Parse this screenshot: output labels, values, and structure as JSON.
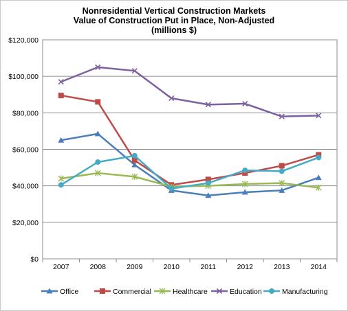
{
  "chart_data": {
    "type": "line",
    "title": "Nonresidential Vertical Construction Markets",
    "subtitle": "Value of Construction Put in Place, Non-Adjusted",
    "subtitle2": "(millions $)",
    "xlabel": "",
    "ylabel": "",
    "categories": [
      "2007",
      "2008",
      "2009",
      "2010",
      "2011",
      "2012",
      "2013",
      "2014"
    ],
    "ylim": [
      0,
      120000
    ],
    "yticks": [
      0,
      20000,
      40000,
      60000,
      80000,
      100000,
      120000
    ],
    "ytick_labels": [
      "$0",
      "$20,000",
      "$40,000",
      "$60,000",
      "$80,000",
      "$100,000",
      "$120,000"
    ],
    "grid": true,
    "legend_position": "bottom",
    "series": [
      {
        "name": "Office",
        "color": "#4a7ebb",
        "marker": "triangle",
        "values": [
          65000,
          68500,
          51500,
          37500,
          34700,
          36500,
          37500,
          44500
        ]
      },
      {
        "name": "Commercial",
        "color": "#be4b48",
        "marker": "square",
        "values": [
          89500,
          86000,
          54000,
          40500,
          43500,
          47000,
          51000,
          57000
        ]
      },
      {
        "name": "Healthcare",
        "color": "#98b954",
        "marker": "star",
        "values": [
          44000,
          47000,
          45000,
          39500,
          40000,
          41000,
          41500,
          39000
        ]
      },
      {
        "name": "Education",
        "color": "#7d60a0",
        "marker": "x",
        "values": [
          97000,
          105000,
          103000,
          88000,
          84500,
          85000,
          78000,
          78500
        ]
      },
      {
        "name": "Manufacturing",
        "color": "#46aac4",
        "marker": "circle",
        "values": [
          40500,
          53000,
          56500,
          38500,
          41500,
          48500,
          48000,
          55500
        ]
      }
    ]
  }
}
